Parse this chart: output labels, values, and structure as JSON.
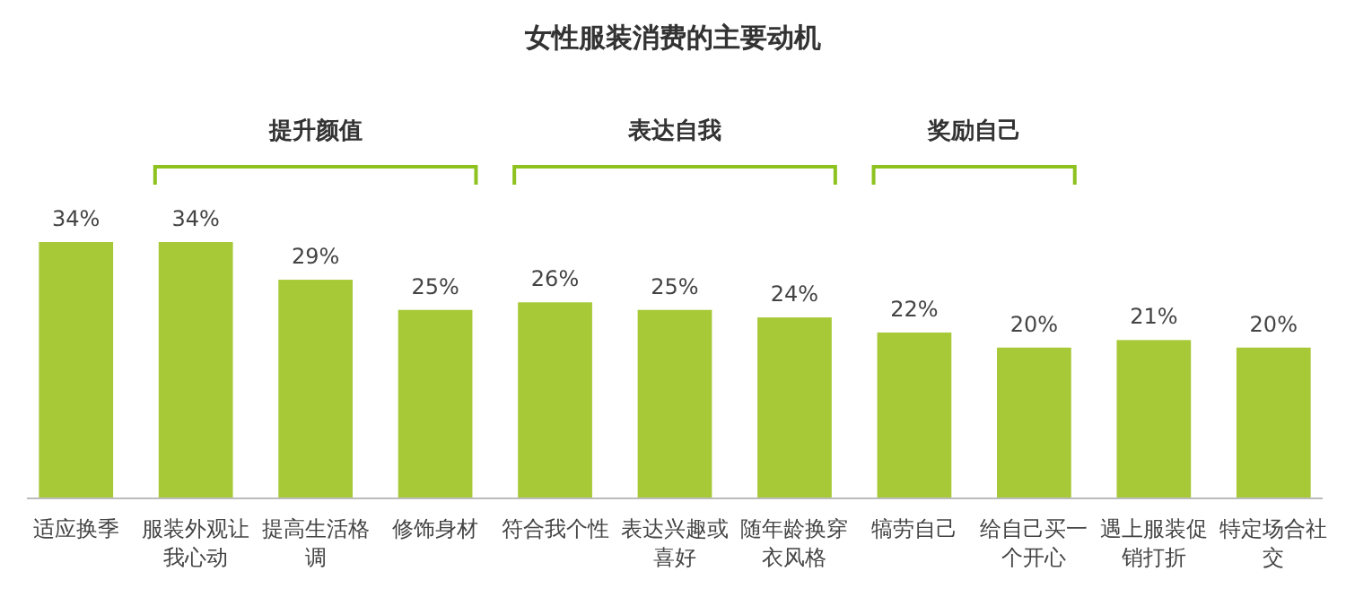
{
  "chart_data": {
    "type": "bar",
    "title": "女性服装消费的主要动机",
    "categories": [
      "适应换季",
      "服装外观让我心动",
      "提高生活格调",
      "修饰身材",
      "符合我个性",
      "表达兴趣或喜好",
      "随年龄换穿衣风格",
      "犒劳自己",
      "给自己买一个开心",
      "遇上服装促销打折",
      "特定场合社交"
    ],
    "values": [
      34,
      34,
      29,
      25,
      26,
      25,
      24,
      22,
      20,
      21,
      20
    ],
    "value_labels": [
      "34%",
      "34%",
      "29%",
      "25%",
      "26%",
      "25%",
      "24%",
      "22%",
      "20%",
      "21%",
      "20%"
    ],
    "color": "#a8c937",
    "annotations": [
      "提升颜值",
      "表达自我",
      "奖励自己"
    ]
  }
}
